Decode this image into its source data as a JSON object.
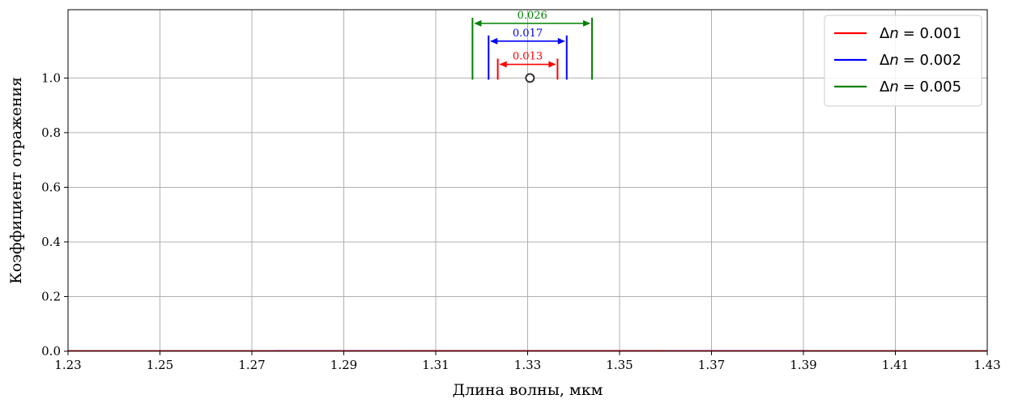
{
  "chart_data": {
    "type": "line",
    "title": "",
    "xlabel": "Длина волны, мкм",
    "ylabel": "Коэффициент отражения",
    "xlim": [
      1.23,
      1.43
    ],
    "ylim": [
      0,
      1.25
    ],
    "xticks": [
      "1.23",
      "1.25",
      "1.27",
      "1.29",
      "1.31",
      "1.33",
      "1.35",
      "1.37",
      "1.39",
      "1.41",
      "1.43"
    ],
    "yticks": [
      "0.0",
      "0.2",
      "0.4",
      "0.6",
      "0.8",
      "1.0"
    ],
    "grid": true,
    "legend_position": "top-right",
    "center_wavelength": 1.3305,
    "series": [
      {
        "name": "Δn = 0.001",
        "legend_prefix": "Δ",
        "legend_var": "n",
        "legend_value": "= 0.001",
        "color": "#ff0000",
        "delta_n": 0.001,
        "bandwidth": 0.013
      },
      {
        "name": "Δn = 0.002",
        "legend_prefix": "Δ",
        "legend_var": "n",
        "legend_value": "= 0.002",
        "color": "#0000ff",
        "delta_n": 0.002,
        "bandwidth": 0.017
      },
      {
        "name": "Δn = 0.005",
        "legend_prefix": "Δ",
        "legend_var": "n",
        "legend_value": "= 0.005",
        "color": "#008000",
        "delta_n": 0.005,
        "bandwidth": 0.026
      }
    ],
    "annotations": [
      {
        "text": "0.026",
        "color": "#008000",
        "x_from": 1.318,
        "x_to": 1.344,
        "y": 1.2
      },
      {
        "text": "0.017",
        "color": "#0000ff",
        "x_from": 1.3215,
        "x_to": 1.3385,
        "y": 1.135
      },
      {
        "text": "0.013",
        "color": "#ff0000",
        "x_from": 1.3235,
        "x_to": 1.3365,
        "y": 1.05
      }
    ]
  }
}
